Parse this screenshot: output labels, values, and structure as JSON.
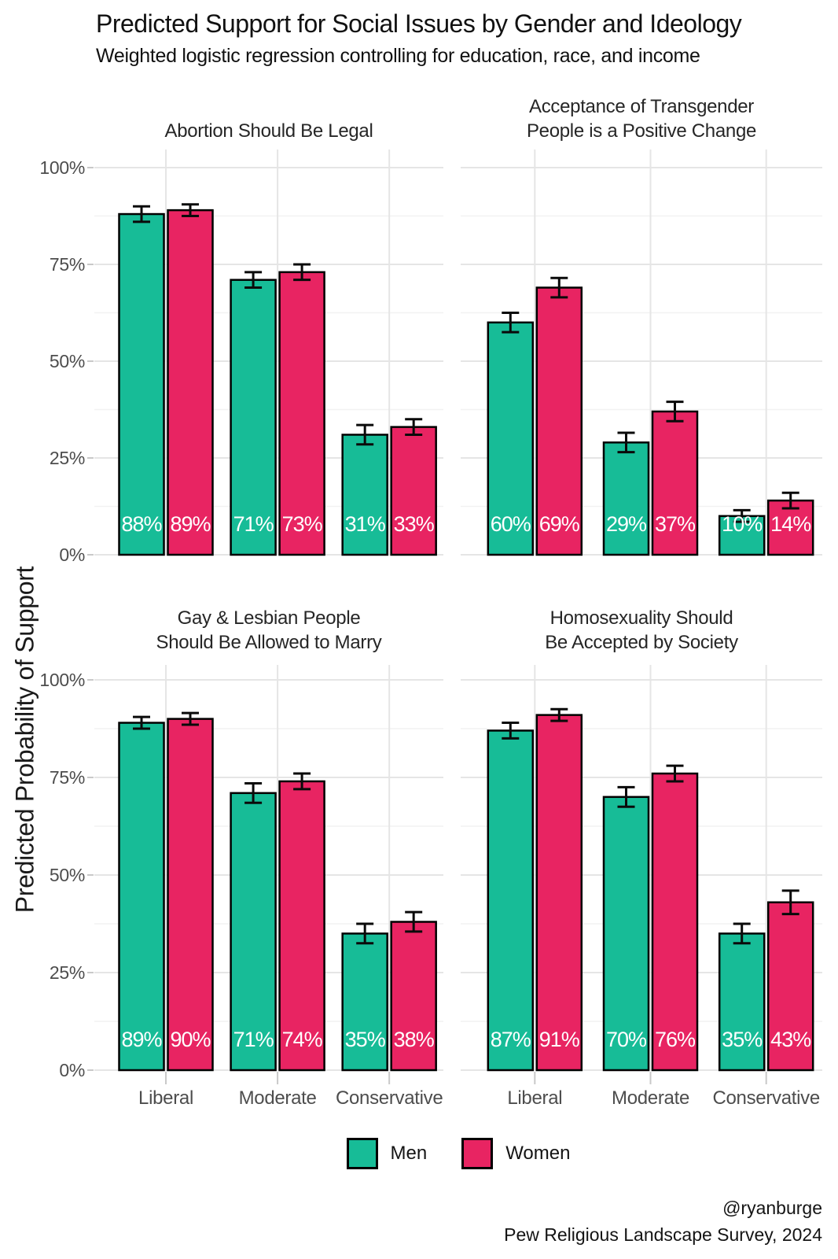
{
  "header": {
    "title": "Predicted Support for Social Issues by Gender and Ideology",
    "subtitle": "Weighted logistic regression controlling for education, race, and income"
  },
  "axes": {
    "y_title": "Predicted Probability of Support",
    "y_tick_labels": [
      "100%",
      "75%",
      "50%",
      "25%",
      "0%"
    ],
    "x_categories": [
      "Liberal",
      "Moderate",
      "Conservative"
    ]
  },
  "legend": [
    {
      "label": "Men",
      "color": "#17bc97"
    },
    {
      "label": "Women",
      "color": "#e82462"
    }
  ],
  "caption": {
    "line1": "@ryanburge",
    "line2": "Pew Religious Landscape Survey, 2024"
  },
  "colors": {
    "men": "#17bc97",
    "women": "#e82462",
    "bar_outline": "#000000",
    "error_bar": "#0a0a0a",
    "grid_major": "#e5e5e5",
    "grid_minor": "#f2f2f2",
    "axis_tick": "#c9c9c9",
    "value_label": "#ffffff"
  },
  "chart_data": {
    "type": "bar",
    "grouping": "dodged-pairs-with-error-bars",
    "categories": [
      "Liberal",
      "Moderate",
      "Conservative"
    ],
    "value_suffix": "%",
    "ylim": [
      0,
      100
    ],
    "y_major_ticks": [
      0,
      25,
      50,
      75,
      100
    ],
    "y_minor_ticks": [
      12.5,
      37.5,
      62.5,
      87.5
    ],
    "grid": "major+minor",
    "legend_position": "bottom",
    "facets": [
      {
        "title_lines": [
          "Abortion Should Be Legal"
        ],
        "series": [
          {
            "name": "Men",
            "values": [
              88,
              71,
              31
            ],
            "errors": [
              2,
              2,
              2.5
            ]
          },
          {
            "name": "Women",
            "values": [
              89,
              73,
              33
            ],
            "errors": [
              1.5,
              2,
              2
            ]
          }
        ]
      },
      {
        "title_lines": [
          "Acceptance of Transgender",
          "People is a Positive Change"
        ],
        "series": [
          {
            "name": "Men",
            "values": [
              60,
              29,
              10
            ],
            "errors": [
              2.5,
              2.5,
              1.5
            ]
          },
          {
            "name": "Women",
            "values": [
              69,
              37,
              14
            ],
            "errors": [
              2.5,
              2.5,
              2
            ]
          }
        ]
      },
      {
        "title_lines": [
          "Gay & Lesbian People",
          "Should Be Allowed to Marry"
        ],
        "series": [
          {
            "name": "Men",
            "values": [
              89,
              71,
              35
            ],
            "errors": [
              1.5,
              2.5,
              2.5
            ]
          },
          {
            "name": "Women",
            "values": [
              90,
              74,
              38
            ],
            "errors": [
              1.5,
              2,
              2.5
            ]
          }
        ]
      },
      {
        "title_lines": [
          "Homosexuality Should",
          "Be Accepted by Society"
        ],
        "series": [
          {
            "name": "Men",
            "values": [
              87,
              70,
              35
            ],
            "errors": [
              2,
              2.5,
              2.5
            ]
          },
          {
            "name": "Women",
            "values": [
              91,
              76,
              43
            ],
            "errors": [
              1.5,
              2,
              3
            ]
          }
        ]
      }
    ]
  }
}
